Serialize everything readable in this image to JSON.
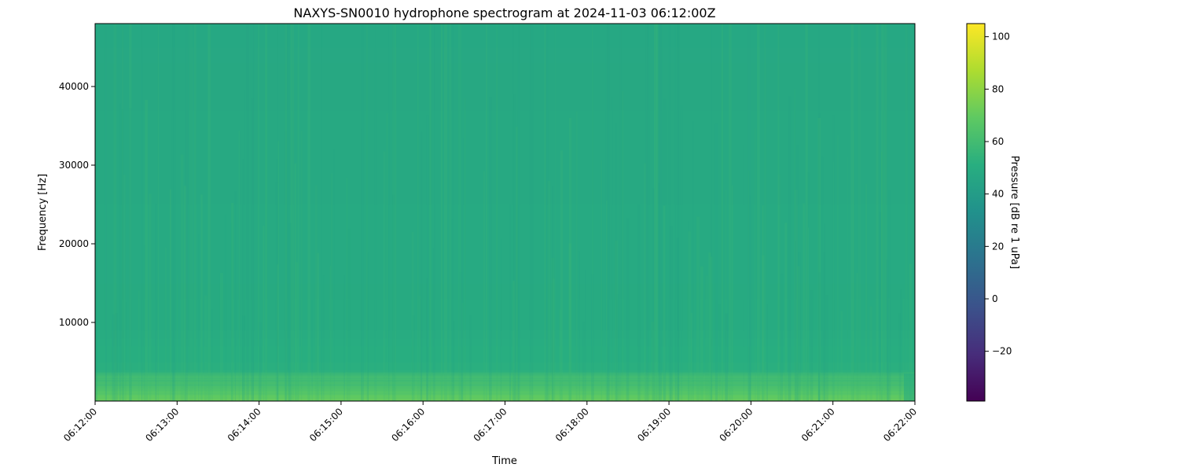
{
  "chart_data": {
    "type": "heatmap",
    "title": "NAXYS-SN0010 hydrophone spectrogram at 2024-11-03 06:12:00Z",
    "xlabel": "Time",
    "ylabel": "Frequency [Hz]",
    "colorbar_label": "Pressure [dB re 1 uPa]",
    "colormap": "viridis",
    "xlim": [
      "06:12:00",
      "06:22:00"
    ],
    "ylim": [
      0,
      48000
    ],
    "clim": [
      -39,
      105
    ],
    "x_ticks": [
      "06:12:00",
      "06:13:00",
      "06:14:00",
      "06:15:00",
      "06:16:00",
      "06:17:00",
      "06:18:00",
      "06:19:00",
      "06:20:00",
      "06:21:00",
      "06:22:00"
    ],
    "y_ticks": [
      10000,
      20000,
      30000,
      40000
    ],
    "y_tick_labels": [
      "10000",
      "20000",
      "30000",
      "40000"
    ],
    "colorbar_ticks": [
      -20,
      0,
      20,
      40,
      60,
      80,
      100
    ],
    "colorbar_tick_labels": [
      "−20",
      "0",
      "20",
      "40",
      "60",
      "80",
      "100"
    ],
    "frequency_profile": {
      "frequency_hz": [
        0,
        500,
        1000,
        2000,
        3500,
        3700,
        8000,
        10000,
        48000
      ],
      "level_db": [
        70,
        70,
        66,
        61,
        58,
        52,
        50,
        49,
        47
      ]
    },
    "grid": false
  }
}
